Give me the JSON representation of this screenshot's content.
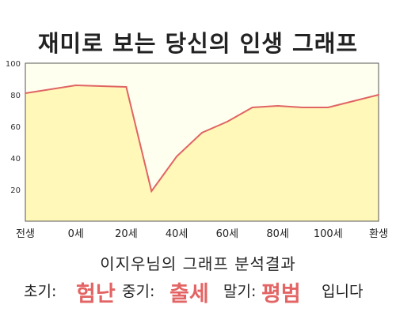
{
  "title": "재미로 보는 당신의 인생 그래프",
  "subtitle": "이지우님의 그래프 분석결과",
  "result": {
    "early_label": "초기:",
    "early_value": "험난",
    "middle_label": "중기:",
    "middle_value": "출세",
    "late_label": "말기:",
    "late_value": "평범",
    "ending": "입니다"
  },
  "colors": {
    "line": "#e06464",
    "fill": "#fff8b8",
    "plot_background": "#fffff0",
    "highlight": "#e36464"
  },
  "chart_data": {
    "type": "area",
    "x": [
      -20,
      0,
      20,
      30,
      40,
      50,
      60,
      70,
      80,
      90,
      100,
      110,
      120
    ],
    "values": [
      81,
      86,
      85,
      19,
      41,
      56,
      63,
      72,
      73,
      72,
      72,
      76,
      80
    ],
    "xlim": [
      -20,
      120
    ],
    "ylim": [
      0,
      100
    ],
    "yticks": [
      20,
      40,
      60,
      80,
      100
    ],
    "xtick_labels": [
      "전생",
      "0세",
      "20세",
      "40세",
      "60세",
      "80세",
      "100세",
      "환생"
    ],
    "xtick_positions": [
      -20,
      0,
      20,
      40,
      60,
      80,
      100,
      120
    ],
    "grid": false
  }
}
